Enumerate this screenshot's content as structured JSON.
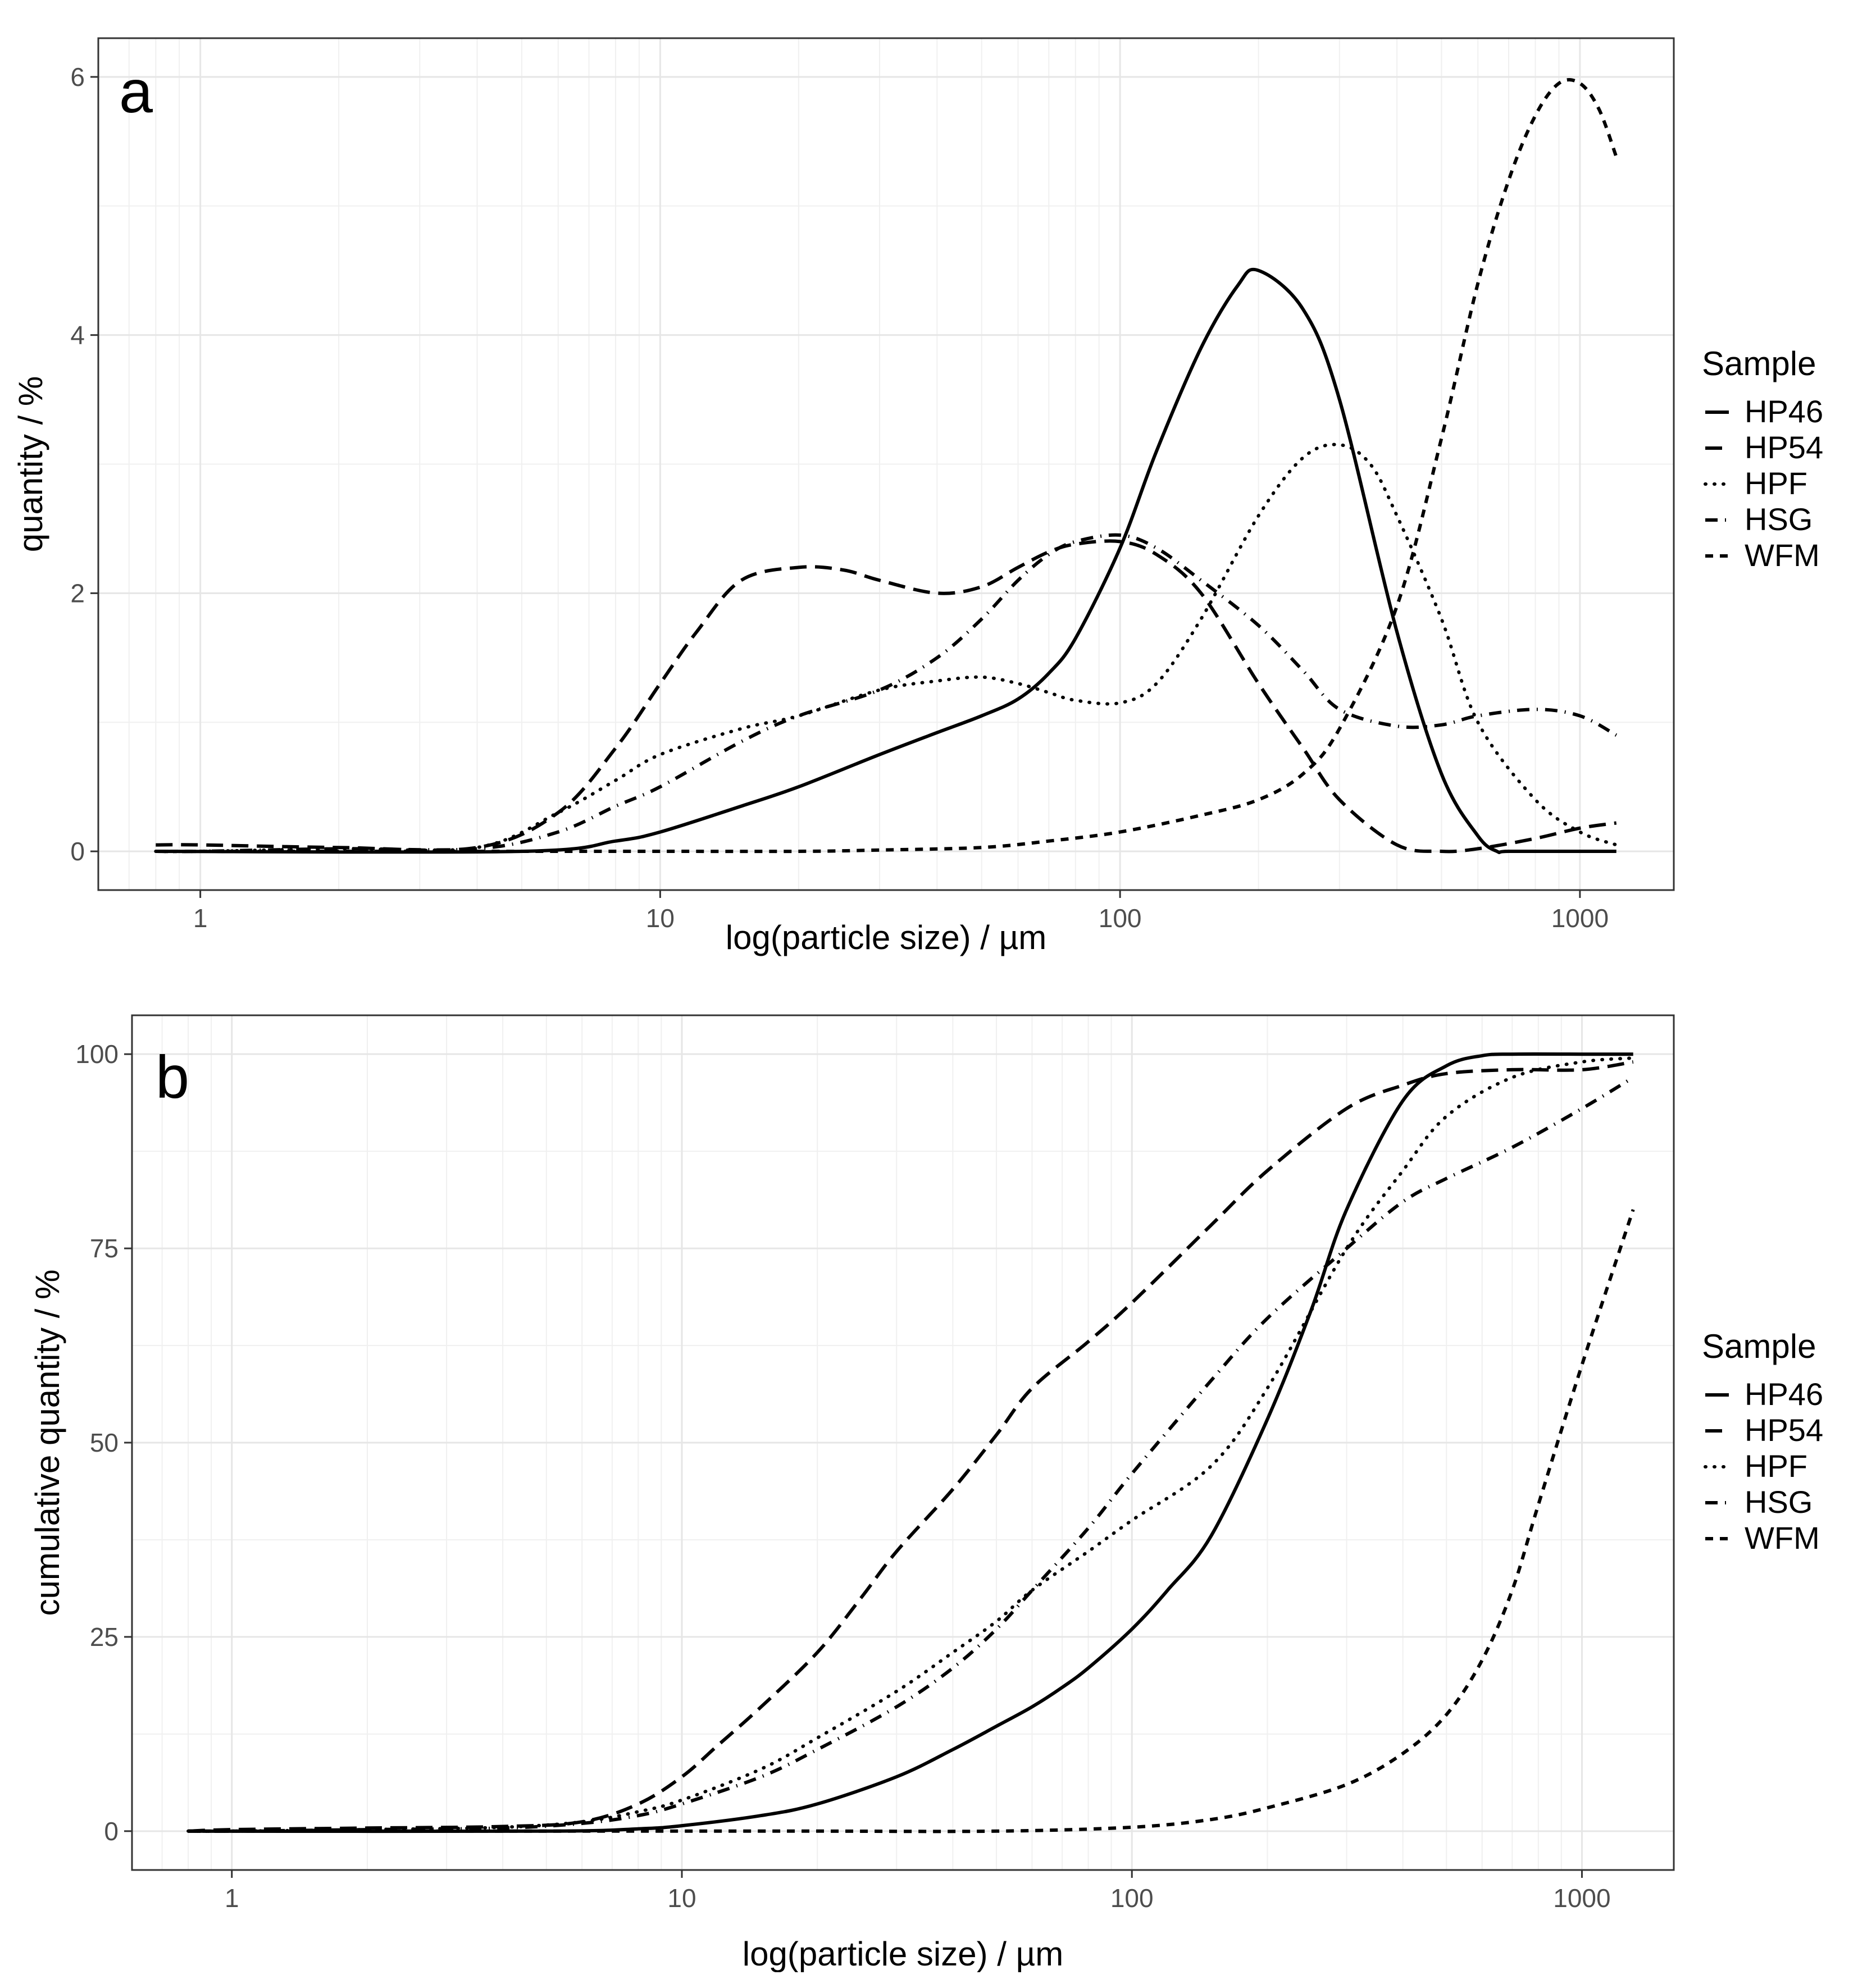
{
  "chart_data": [
    {
      "type": "line",
      "panel_label": "a",
      "xlabel": "log(particle size) / µm",
      "ylabel": "quantity / %",
      "x_scale": "log10",
      "xlim": [
        0.6,
        1600
      ],
      "ylim": [
        -0.3,
        6.3
      ],
      "x_ticks": [
        1,
        10,
        100,
        1000
      ],
      "x_tick_labels": [
        "1",
        "10",
        "100",
        "1000"
      ],
      "y_ticks": [
        0,
        2,
        4,
        6
      ],
      "y_tick_labels": [
        "0",
        "2",
        "4",
        "6"
      ],
      "grid": true,
      "legend": {
        "title": "Sample",
        "position": "right",
        "entries": [
          "HP46",
          "HP54",
          "HPF",
          "HSG",
          "WFM"
        ]
      },
      "series": [
        {
          "name": "HP46",
          "dash": "solid",
          "x": [
            0.8,
            5,
            8,
            10,
            15,
            20,
            30,
            40,
            50,
            60,
            70,
            80,
            100,
            120,
            150,
            180,
            200,
            250,
            300,
            400,
            500,
            600,
            660,
            700,
            1000,
            1200
          ],
          "y": [
            0,
            0,
            0.08,
            0.15,
            0.35,
            0.5,
            0.75,
            0.92,
            1.05,
            1.18,
            1.38,
            1.65,
            2.35,
            3.1,
            3.9,
            4.38,
            4.5,
            4.2,
            3.5,
            1.7,
            0.6,
            0.12,
            0,
            0,
            0,
            0
          ]
        },
        {
          "name": "HP54",
          "dash": "longdash",
          "x": [
            0.8,
            1,
            2,
            4,
            6,
            8,
            10,
            12,
            15,
            20,
            25,
            30,
            40,
            50,
            60,
            70,
            80,
            100,
            120,
            150,
            200,
            250,
            300,
            400,
            500,
            600,
            800,
            1000,
            1200
          ],
          "y": [
            0.05,
            0.05,
            0.03,
            0.03,
            0.3,
            0.8,
            1.3,
            1.7,
            2.1,
            2.2,
            2.18,
            2.1,
            2.0,
            2.05,
            2.2,
            2.32,
            2.38,
            2.4,
            2.3,
            2.0,
            1.3,
            0.8,
            0.4,
            0.05,
            0,
            0.02,
            0.1,
            0.18,
            0.22
          ]
        },
        {
          "name": "HPF",
          "dash": "dotted",
          "x": [
            0.8,
            1,
            2,
            4,
            6,
            8,
            10,
            15,
            20,
            30,
            40,
            50,
            60,
            70,
            80,
            100,
            120,
            150,
            200,
            250,
            300,
            350,
            400,
            500,
            600,
            800,
            1000,
            1200
          ],
          "y": [
            0,
            0,
            0.02,
            0.03,
            0.3,
            0.55,
            0.75,
            0.95,
            1.05,
            1.25,
            1.32,
            1.35,
            1.3,
            1.23,
            1.17,
            1.15,
            1.3,
            1.8,
            2.6,
            3.05,
            3.15,
            3.0,
            2.6,
            1.8,
            1.0,
            0.4,
            0.15,
            0.05
          ]
        },
        {
          "name": "HSG",
          "dash": "dashdot",
          "x": [
            0.8,
            1,
            2,
            4,
            6,
            8,
            10,
            15,
            20,
            30,
            40,
            50,
            60,
            70,
            80,
            100,
            120,
            150,
            200,
            250,
            300,
            400,
            500,
            600,
            800,
            1000,
            1200
          ],
          "y": [
            0,
            0,
            0.02,
            0.02,
            0.15,
            0.35,
            0.5,
            0.85,
            1.05,
            1.25,
            1.5,
            1.8,
            2.1,
            2.3,
            2.4,
            2.45,
            2.35,
            2.1,
            1.75,
            1.4,
            1.1,
            0.97,
            0.98,
            1.05,
            1.1,
            1.05,
            0.9
          ]
        },
        {
          "name": "WFM",
          "dash": "twodash",
          "x": [
            0.8,
            5,
            10,
            20,
            30,
            50,
            70,
            100,
            150,
            200,
            250,
            300,
            400,
            500,
            600,
            700,
            800,
            900,
            1000,
            1100,
            1200
          ],
          "y": [
            0,
            0,
            0,
            0,
            0.01,
            0.03,
            0.08,
            0.15,
            0.28,
            0.4,
            0.6,
            0.95,
            1.9,
            3.2,
            4.4,
            5.2,
            5.7,
            5.95,
            5.95,
            5.75,
            5.38
          ]
        }
      ]
    },
    {
      "type": "line",
      "panel_label": "b",
      "xlabel": "log(particle size) / µm",
      "ylabel": "cumulative quantity / %",
      "x_scale": "log10",
      "xlim": [
        0.6,
        1600
      ],
      "ylim": [
        -5,
        105
      ],
      "x_ticks": [
        1,
        10,
        100,
        1000
      ],
      "x_tick_labels": [
        "1",
        "10",
        "100",
        "1000"
      ],
      "y_ticks": [
        0,
        25,
        50,
        75,
        100
      ],
      "y_tick_labels": [
        "0",
        "25",
        "50",
        "75",
        "100"
      ],
      "grid": true,
      "legend": {
        "title": "Sample",
        "position": "right",
        "entries": [
          "HP46",
          "HP54",
          "HPF",
          "HSG",
          "WFM"
        ]
      },
      "series": [
        {
          "name": "HP46",
          "dash": "solid",
          "x": [
            0.8,
            5,
            8,
            10,
            15,
            20,
            30,
            40,
            50,
            60,
            70,
            80,
            100,
            120,
            150,
            200,
            250,
            300,
            400,
            500,
            600,
            700,
            1000,
            1300
          ],
          "y": [
            0,
            0,
            0.3,
            0.7,
            2,
            3.5,
            7,
            10.5,
            13.5,
            16,
            18.5,
            21,
            26,
            31,
            38,
            53,
            67,
            80,
            94,
            98.5,
            99.8,
            100,
            100,
            100
          ]
        },
        {
          "name": "HP54",
          "dash": "longdash",
          "x": [
            0.8,
            1,
            2,
            4,
            6,
            8,
            10,
            12,
            15,
            20,
            25,
            30,
            40,
            50,
            60,
            80,
            100,
            150,
            200,
            300,
            400,
            500,
            700,
            1000,
            1300
          ],
          "y": [
            0,
            0.2,
            0.4,
            0.6,
            1.2,
            3.5,
            7,
            11,
            16,
            23,
            30,
            36,
            44,
            51,
            57,
            63,
            68,
            78,
            85,
            93,
            96,
            97.5,
            98,
            98,
            99
          ]
        },
        {
          "name": "HPF",
          "dash": "dotted",
          "x": [
            0.8,
            1,
            2,
            4,
            6,
            8,
            10,
            15,
            20,
            30,
            40,
            50,
            60,
            80,
            100,
            150,
            200,
            300,
            400,
            500,
            700,
            1000,
            1300
          ],
          "y": [
            0,
            0,
            0.2,
            0.5,
            1.2,
            2.5,
            4,
            8,
            12,
            18,
            23,
            27,
            31,
            36,
            40,
            47,
            57,
            75,
            85,
            92,
            97,
            99,
            99.5
          ]
        },
        {
          "name": "HSG",
          "dash": "dashdot",
          "x": [
            0.8,
            1,
            2,
            4,
            6,
            8,
            10,
            15,
            20,
            30,
            40,
            50,
            60,
            80,
            100,
            150,
            200,
            300,
            400,
            500,
            700,
            1000,
            1300
          ],
          "y": [
            0,
            0,
            0.2,
            0.4,
            1,
            2,
            3.5,
            7,
            10.5,
            16,
            21,
            26,
            31,
            39,
            46,
            58,
            66,
            75,
            81,
            84,
            88,
            93,
            97
          ]
        },
        {
          "name": "WFM",
          "dash": "twodash",
          "x": [
            0.8,
            10,
            20,
            50,
            100,
            150,
            200,
            300,
            400,
            500,
            600,
            700,
            800,
            1000,
            1300
          ],
          "y": [
            0,
            0,
            0,
            0,
            0.5,
            1.5,
            3,
            6,
            10,
            15,
            22,
            31,
            42,
            60,
            80
          ]
        }
      ]
    }
  ]
}
